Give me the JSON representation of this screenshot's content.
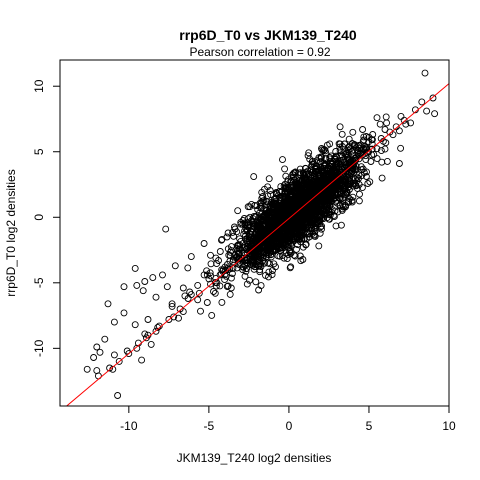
{
  "chart_data": {
    "type": "scatter",
    "title": "rrp6D_T0 vs JKM139_T240",
    "subtitle": "Pearson correlation =  0.92",
    "xlabel": "JKM139_T240 log2 densities",
    "ylabel": "rrp6D_T0 log2 densities",
    "xlim": [
      -14.3,
      10.0
    ],
    "ylim": [
      -14.4,
      12.0
    ],
    "xticks": [
      -10,
      -5,
      0,
      5,
      10
    ],
    "xtick_labels": [
      "-10",
      "-5",
      "0",
      "5",
      "10"
    ],
    "yticks": [
      -10,
      -5,
      0,
      5,
      10
    ],
    "ytick_labels": [
      "-10",
      "-5",
      "0",
      "5",
      "10"
    ],
    "grid": false,
    "legend": "none",
    "point_color": "#000000",
    "line_color": "#ff0000",
    "fit_line": {
      "slope": 1.03,
      "intercept": -0.1
    },
    "points_x": [
      8.5,
      9.1,
      7.3,
      7.0,
      6.3,
      6.5,
      5.9,
      5.2,
      4.8,
      6.1,
      7.9,
      8.3,
      5.5,
      6.7,
      7.6,
      6.0,
      5.0,
      4.5,
      3.9,
      2.0,
      1.0,
      -0.1,
      -0.6,
      -1.8,
      -0.4,
      -2.2,
      1.2,
      2.4,
      3.2,
      4.6,
      5.7,
      7.2,
      8.6,
      9.0,
      5.8,
      6.9,
      4.2,
      3.5,
      -3.8,
      -3.6,
      -4.6,
      -5.1,
      -6.6,
      -6.9,
      -8.2,
      -8.9,
      -10.1,
      -9.2,
      -11.0,
      -12.0,
      -12.6,
      -12.2,
      -11.8,
      -12.0,
      -10.7,
      -10.9,
      -9.5,
      -8.6,
      -8.8,
      -7.3,
      -6.1,
      -5.7,
      -4.0,
      -4.3,
      -1.7,
      0.9,
      2.0,
      3.4,
      2.8,
      -0.3,
      -3.2,
      0.6,
      -9.6,
      -7.7,
      -5.3,
      -4.9,
      -2.6,
      -3.0,
      -0.2,
      1.3,
      2.9,
      4.0,
      3.7,
      -7.6,
      -9.0,
      -10.3,
      -11.3,
      -9.6,
      -8.3,
      -7.3,
      -6.6,
      -6.3,
      -5.0,
      -4.2,
      -2.8,
      -2.0,
      -1.0,
      -3.8,
      -0.1,
      1.6,
      2.6,
      3.1,
      4.2,
      5.2,
      4.0,
      3.0,
      -5.3,
      -6.1,
      -7.1,
      -7.9,
      -8.5,
      -9.1,
      -9.5,
      -10.3,
      -10.9,
      -11.5,
      -6.2,
      -5.1,
      -4.4,
      -3.5,
      -2.2,
      -1.3,
      -0.6,
      0.7,
      1.5,
      2.7,
      3.6,
      4.8,
      5.3,
      6.0,
      6.9,
      -4.5,
      -3.5,
      -2.6,
      -1.7,
      -0.8,
      -1.5,
      -0.5,
      0.5,
      1.1,
      1.9,
      2.3,
      0.0,
      0.8,
      1.4,
      -2.5,
      -3.1,
      -4.1,
      -4.9,
      -5.6,
      -6.8,
      -7.5,
      -8.1,
      -8.8,
      -9.4,
      -10.0,
      -10.6,
      -11.2,
      -11.9,
      -5.7,
      -6.5,
      -7.2,
      -8.3,
      -9.0
    ],
    "points_y": [
      11.0,
      7.9,
      7.1,
      7.7,
      6.5,
      6.3,
      5.8,
      5.6,
      4.7,
      7.2,
      8.2,
      8.8,
      7.6,
      6.9,
      7.2,
      6.7,
      6.1,
      4.9,
      4.3,
      2.4,
      1.6,
      0.2,
      -0.4,
      -1.5,
      4.4,
      3.1,
      4.7,
      5.5,
      6.9,
      6.7,
      7.1,
      7.4,
      8.1,
      9.1,
      4.2,
      4.1,
      2.4,
      2.0,
      -4.0,
      -5.4,
      -5.8,
      -6.5,
      -7.2,
      -7.7,
      -8.4,
      -9.2,
      -10.2,
      -10.9,
      -11.6,
      -11.7,
      -11.6,
      -10.7,
      -10.3,
      -9.9,
      -13.6,
      -10.5,
      -10.0,
      -9.7,
      -7.8,
      -6.8,
      -5.9,
      -5.2,
      -3.8,
      -4.4,
      1.9,
      3.4,
      4.6,
      3.3,
      3.6,
      2.4,
      0.5,
      -0.7,
      -3.9,
      -0.9,
      -4.4,
      -2.9,
      -2.2,
      -3.1,
      -1.6,
      -0.1,
      1.5,
      2.6,
      1.2,
      -5.3,
      -4.9,
      -5.3,
      -6.6,
      -8.2,
      -6.1,
      -6.6,
      -5.4,
      -6.2,
      -4.7,
      -4.0,
      -2.3,
      -1.6,
      -0.8,
      -1.2,
      0.2,
      1.3,
      2.3,
      3.0,
      3.9,
      5.2,
      4.7,
      3.6,
      -2.0,
      -3.0,
      -3.7,
      -4.4,
      -4.6,
      -5.6,
      -5.2,
      -7.3,
      -8.0,
      -9.3,
      -5.7,
      -4.4,
      -3.3,
      -3.4,
      -2.7,
      -1.0,
      -0.3,
      0.4,
      1.1,
      2.4,
      3.1,
      4.4,
      4.8,
      5.2,
      6.6,
      -5.0,
      -3.9,
      -2.7,
      -1.3,
      -0.7,
      -1.2,
      -0.2,
      0.6,
      1.2,
      2.0,
      2.5,
      0.1,
      0.9,
      1.6,
      -2.6,
      -3.2,
      -4.0,
      -5.1,
      -5.8,
      -7.0,
      -7.8,
      -8.3,
      -9.0,
      -9.6,
      -10.4,
      -11.0,
      -11.5,
      -12.1,
      -6.3,
      -6.0,
      -7.6,
      -8.7,
      -8.9
    ],
    "dense_core": {
      "x_range": [
        -3.5,
        4.5
      ],
      "center_slope": 1.0,
      "spread": 1.1
    }
  }
}
